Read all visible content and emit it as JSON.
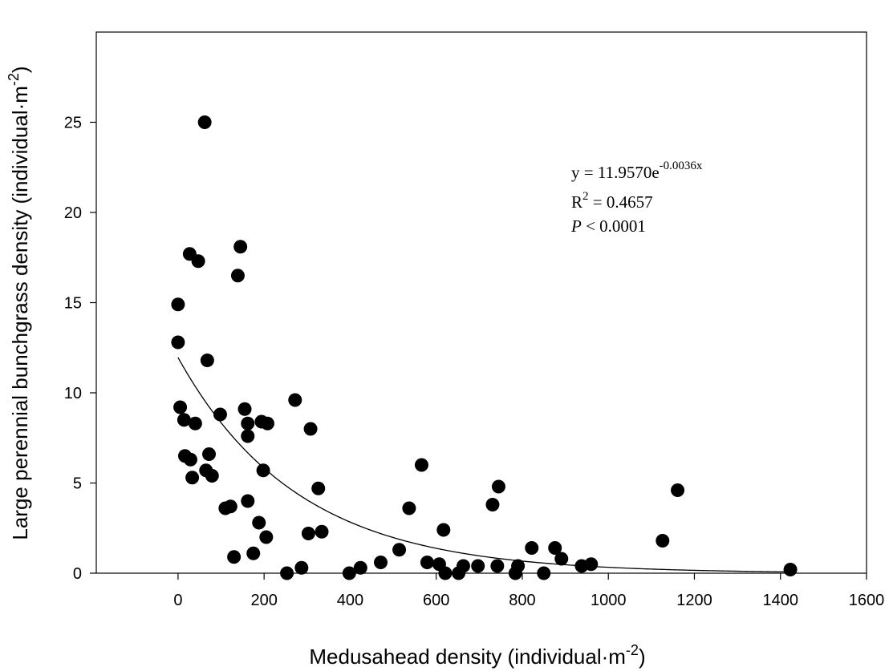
{
  "chart_data": {
    "type": "scatter",
    "title": "",
    "xlabel": "Medusahead density  (individual·m",
    "xlabel_sup": "-2",
    "xlabel_close": ")",
    "ylabel": "Large perennial bunchgrass density (individual·m",
    "ylabel_sup": "-2",
    "ylabel_close": ")",
    "xlim": [
      -190,
      1600
    ],
    "ylim": [
      0,
      30
    ],
    "xticks": [
      0,
      200,
      400,
      600,
      800,
      1000,
      1200,
      1400,
      1600
    ],
    "yticks": [
      0,
      5,
      10,
      15,
      20,
      25
    ],
    "grid": false,
    "fit": {
      "a": 11.957,
      "b": -0.0036,
      "x_start": 0,
      "x_end": 1420
    },
    "annotation": {
      "eq_main": "y  = 11.9570e",
      "eq_exp": "-0.0036x",
      "r2_label": "R",
      "r2_sup": "2",
      "r2_value": " = 0.4657",
      "p_label": "P",
      "p_value": " < 0.0001"
    },
    "points": [
      [
        62,
        25.0
      ],
      [
        27,
        17.7
      ],
      [
        47,
        17.3
      ],
      [
        145,
        18.1
      ],
      [
        139,
        16.5
      ],
      [
        0,
        14.9
      ],
      [
        0,
        12.8
      ],
      [
        68,
        11.8
      ],
      [
        5,
        9.2
      ],
      [
        14,
        8.5
      ],
      [
        40,
        8.3
      ],
      [
        98,
        8.8
      ],
      [
        155,
        9.1
      ],
      [
        162,
        8.3
      ],
      [
        162,
        7.6
      ],
      [
        194,
        8.4
      ],
      [
        208,
        8.3
      ],
      [
        272,
        9.6
      ],
      [
        308,
        8.0
      ],
      [
        16,
        6.5
      ],
      [
        29,
        6.3
      ],
      [
        33,
        5.3
      ],
      [
        65,
        5.7
      ],
      [
        72,
        6.6
      ],
      [
        79,
        5.4
      ],
      [
        198,
        5.7
      ],
      [
        110,
        3.6
      ],
      [
        122,
        3.7
      ],
      [
        162,
        4.0
      ],
      [
        326,
        4.7
      ],
      [
        188,
        2.8
      ],
      [
        205,
        2.0
      ],
      [
        303,
        2.2
      ],
      [
        334,
        2.3
      ],
      [
        130,
        0.9
      ],
      [
        175,
        1.1
      ],
      [
        253,
        0.0
      ],
      [
        287,
        0.3
      ],
      [
        398,
        0.0
      ],
      [
        424,
        0.3
      ],
      [
        471,
        0.6
      ],
      [
        514,
        1.3
      ],
      [
        537,
        3.6
      ],
      [
        566,
        6.0
      ],
      [
        579,
        0.6
      ],
      [
        607,
        0.5
      ],
      [
        617,
        2.4
      ],
      [
        621,
        0.0
      ],
      [
        652,
        0.0
      ],
      [
        663,
        0.4
      ],
      [
        697,
        0.4
      ],
      [
        731,
        3.8
      ],
      [
        742,
        0.4
      ],
      [
        745,
        4.8
      ],
      [
        784,
        0.0
      ],
      [
        790,
        0.4
      ],
      [
        822,
        1.4
      ],
      [
        850,
        0.0
      ],
      [
        876,
        1.4
      ],
      [
        891,
        0.8
      ],
      [
        938,
        0.4
      ],
      [
        960,
        0.5
      ],
      [
        1126,
        1.8
      ],
      [
        1161,
        4.6
      ],
      [
        1423,
        0.2
      ]
    ]
  }
}
